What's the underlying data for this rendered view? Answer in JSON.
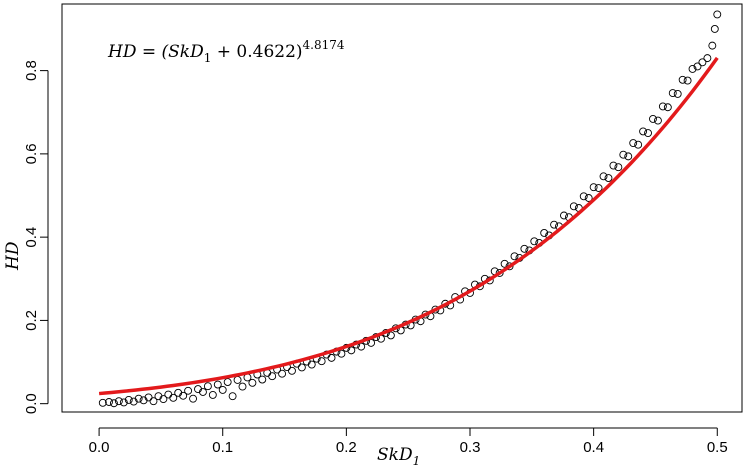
{
  "chart_data": {
    "type": "scatter",
    "title": "",
    "annotation": {
      "lhs": "HD = (SkD",
      "sub": "1",
      "rhs": " + 0.4622)",
      "sup": "4.8174"
    },
    "xlabel": {
      "main": "SkD",
      "sub": "1"
    },
    "ylabel": "HD",
    "xlim": [
      -0.03,
      0.52
    ],
    "ylim": [
      -0.02,
      0.96
    ],
    "xticks": [
      "0.0",
      "0.1",
      "0.2",
      "0.3",
      "0.4",
      "0.5"
    ],
    "yticks": [
      "0.0",
      "0.2",
      "0.4",
      "0.6",
      "0.8"
    ],
    "grid": false,
    "colors": {
      "points": "#000000",
      "fit": "#e31a1c"
    },
    "fit": {
      "type": "power",
      "offset": 0.4622,
      "exponent": 4.8174,
      "x_range": [
        0.0,
        0.5
      ]
    },
    "series": [
      {
        "kind": "points",
        "points": [
          [
            0.003,
            0.002
          ],
          [
            0.008,
            0.004
          ],
          [
            0.012,
            0.001
          ],
          [
            0.016,
            0.006
          ],
          [
            0.02,
            0.003
          ],
          [
            0.024,
            0.009
          ],
          [
            0.028,
            0.005
          ],
          [
            0.032,
            0.012
          ],
          [
            0.036,
            0.008
          ],
          [
            0.04,
            0.015
          ],
          [
            0.044,
            0.006
          ],
          [
            0.048,
            0.018
          ],
          [
            0.052,
            0.011
          ],
          [
            0.056,
            0.022
          ],
          [
            0.06,
            0.014
          ],
          [
            0.064,
            0.026
          ],
          [
            0.068,
            0.019
          ],
          [
            0.072,
            0.031
          ],
          [
            0.076,
            0.012
          ],
          [
            0.08,
            0.035
          ],
          [
            0.084,
            0.028
          ],
          [
            0.088,
            0.042
          ],
          [
            0.092,
            0.021
          ],
          [
            0.096,
            0.046
          ],
          [
            0.1,
            0.033
          ],
          [
            0.104,
            0.052
          ],
          [
            0.108,
            0.018
          ],
          [
            0.112,
            0.057
          ],
          [
            0.116,
            0.041
          ],
          [
            0.12,
            0.063
          ],
          [
            0.124,
            0.05
          ],
          [
            0.128,
            0.07
          ],
          [
            0.132,
            0.058
          ],
          [
            0.136,
            0.074
          ],
          [
            0.14,
            0.066
          ],
          [
            0.144,
            0.082
          ],
          [
            0.148,
            0.072
          ],
          [
            0.152,
            0.088
          ],
          [
            0.156,
            0.079
          ],
          [
            0.16,
            0.096
          ],
          [
            0.164,
            0.087
          ],
          [
            0.168,
            0.101
          ],
          [
            0.172,
            0.094
          ],
          [
            0.176,
            0.108
          ],
          [
            0.18,
            0.102
          ],
          [
            0.184,
            0.118
          ],
          [
            0.188,
            0.11
          ],
          [
            0.192,
            0.125
          ],
          [
            0.196,
            0.12
          ],
          [
            0.2,
            0.134
          ],
          [
            0.204,
            0.128
          ],
          [
            0.208,
            0.142
          ],
          [
            0.212,
            0.137
          ],
          [
            0.216,
            0.151
          ],
          [
            0.22,
            0.146
          ],
          [
            0.224,
            0.16
          ],
          [
            0.228,
            0.156
          ],
          [
            0.232,
            0.17
          ],
          [
            0.236,
            0.164
          ],
          [
            0.24,
            0.181
          ],
          [
            0.244,
            0.176
          ],
          [
            0.248,
            0.19
          ],
          [
            0.252,
            0.188
          ],
          [
            0.256,
            0.202
          ],
          [
            0.26,
            0.198
          ],
          [
            0.264,
            0.214
          ],
          [
            0.268,
            0.21
          ],
          [
            0.272,
            0.226
          ],
          [
            0.276,
            0.224
          ],
          [
            0.28,
            0.24
          ],
          [
            0.284,
            0.236
          ],
          [
            0.288,
            0.256
          ],
          [
            0.292,
            0.25
          ],
          [
            0.296,
            0.27
          ],
          [
            0.3,
            0.266
          ],
          [
            0.304,
            0.286
          ],
          [
            0.308,
            0.282
          ],
          [
            0.312,
            0.3
          ],
          [
            0.316,
            0.296
          ],
          [
            0.32,
            0.318
          ],
          [
            0.324,
            0.314
          ],
          [
            0.328,
            0.336
          ],
          [
            0.332,
            0.33
          ],
          [
            0.336,
            0.354
          ],
          [
            0.34,
            0.35
          ],
          [
            0.344,
            0.372
          ],
          [
            0.348,
            0.368
          ],
          [
            0.352,
            0.39
          ],
          [
            0.356,
            0.386
          ],
          [
            0.36,
            0.41
          ],
          [
            0.364,
            0.404
          ],
          [
            0.368,
            0.43
          ],
          [
            0.372,
            0.426
          ],
          [
            0.376,
            0.452
          ],
          [
            0.38,
            0.448
          ],
          [
            0.384,
            0.474
          ],
          [
            0.388,
            0.47
          ],
          [
            0.392,
            0.498
          ],
          [
            0.396,
            0.494
          ],
          [
            0.4,
            0.52
          ],
          [
            0.404,
            0.518
          ],
          [
            0.408,
            0.546
          ],
          [
            0.412,
            0.542
          ],
          [
            0.416,
            0.572
          ],
          [
            0.42,
            0.568
          ],
          [
            0.424,
            0.598
          ],
          [
            0.428,
            0.594
          ],
          [
            0.432,
            0.626
          ],
          [
            0.436,
            0.622
          ],
          [
            0.44,
            0.654
          ],
          [
            0.444,
            0.65
          ],
          [
            0.448,
            0.684
          ],
          [
            0.452,
            0.68
          ],
          [
            0.456,
            0.714
          ],
          [
            0.46,
            0.712
          ],
          [
            0.464,
            0.746
          ],
          [
            0.468,
            0.744
          ],
          [
            0.472,
            0.778
          ],
          [
            0.476,
            0.776
          ],
          [
            0.48,
            0.804
          ],
          [
            0.484,
            0.81
          ],
          [
            0.488,
            0.82
          ],
          [
            0.492,
            0.83
          ],
          [
            0.496,
            0.86
          ],
          [
            0.498,
            0.9
          ],
          [
            0.5,
            0.935
          ]
        ]
      },
      {
        "kind": "fit-line"
      }
    ]
  }
}
